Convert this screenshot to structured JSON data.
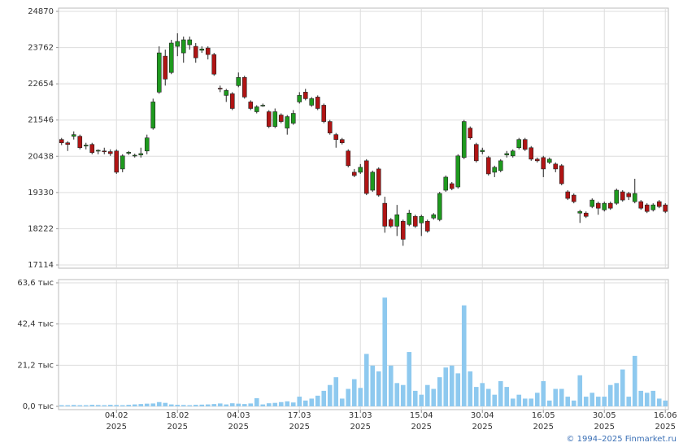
{
  "chart_data": [
    {
      "type": "candlestick",
      "categories": [
        null,
        null,
        null,
        null,
        null,
        null,
        null,
        null,
        null,
        "04.02\n2025",
        null,
        null,
        null,
        null,
        null,
        null,
        null,
        null,
        null,
        "18.02\n2025",
        null,
        null,
        null,
        null,
        null,
        null,
        null,
        null,
        null,
        "04.03\n2025",
        null,
        null,
        null,
        null,
        null,
        null,
        null,
        null,
        null,
        "17.03\n2025",
        null,
        null,
        null,
        null,
        null,
        null,
        null,
        null,
        null,
        "31.03\n2025",
        null,
        null,
        null,
        null,
        null,
        null,
        null,
        null,
        null,
        "15.04\n2025",
        null,
        null,
        null,
        null,
        null,
        null,
        null,
        null,
        null,
        "30.04\n2025",
        null,
        null,
        null,
        null,
        null,
        null,
        null,
        null,
        null,
        "16.05\n2025",
        null,
        null,
        null,
        null,
        null,
        null,
        null,
        null,
        null,
        "30.05\n2025",
        null,
        null,
        null,
        null,
        null,
        null,
        null,
        null,
        null,
        "16.06\n2025"
      ],
      "open": [
        20950,
        20850,
        21050,
        21050,
        20750,
        20800,
        20600,
        20600,
        20580,
        20600,
        20050,
        20530,
        20450,
        20480,
        20600,
        21300,
        22400,
        23500,
        23000,
        23800,
        23600,
        23850,
        23800,
        23680,
        23750,
        23550,
        22520,
        22300,
        22350,
        22600,
        22850,
        22100,
        21800,
        21980,
        21800,
        21350,
        21700,
        21300,
        21450,
        22100,
        22400,
        22000,
        22250,
        22000,
        21500,
        21100,
        20950,
        20600,
        19950,
        19950,
        20300,
        19400,
        20050,
        19000,
        18500,
        18300,
        18450,
        18350,
        18600,
        18400,
        18450,
        18550,
        18500,
        19400,
        19600,
        19500,
        20400,
        21300,
        20800,
        20580,
        20400,
        19950,
        20000,
        20480,
        20450,
        20700,
        20950,
        20700,
        20350,
        20400,
        20250,
        20200,
        20150,
        19350,
        19250,
        18700,
        18700,
        18900,
        19000,
        18800,
        19000,
        19000,
        19350,
        19300,
        19050,
        19050,
        18950,
        18800,
        19050,
        18950
      ],
      "high": [
        21000,
        20900,
        21200,
        21100,
        20850,
        20850,
        20650,
        20700,
        20650,
        20650,
        20500,
        20600,
        20520,
        20700,
        21100,
        22200,
        23800,
        23700,
        24000,
        24200,
        24100,
        24100,
        23900,
        23800,
        23800,
        23600,
        22600,
        22500,
        22400,
        23000,
        22900,
        22150,
        22000,
        22050,
        21850,
        21900,
        21750,
        21700,
        21850,
        22400,
        22500,
        22250,
        22300,
        22050,
        21550,
        21150,
        21000,
        20650,
        20050,
        20200,
        20350,
        20000,
        20100,
        19200,
        18550,
        18950,
        18500,
        18800,
        18650,
        18650,
        18500,
        18700,
        19350,
        19850,
        19650,
        20500,
        21550,
        21350,
        20850,
        20700,
        20450,
        20150,
        20350,
        20600,
        20650,
        21000,
        21000,
        20750,
        20400,
        20450,
        20400,
        20250,
        20200,
        19400,
        19300,
        18800,
        18750,
        19150,
        19050,
        19050,
        19050,
        19450,
        19400,
        19350,
        19750,
        19100,
        19000,
        19000,
        19100,
        19000
      ],
      "low": [
        20780,
        20600,
        20950,
        20650,
        20650,
        20500,
        20500,
        20500,
        20450,
        19900,
        19950,
        20480,
        20400,
        20400,
        20500,
        21250,
        22350,
        22600,
        22950,
        23500,
        23300,
        23700,
        23300,
        23600,
        23400,
        22900,
        22400,
        22100,
        21850,
        22550,
        22200,
        21850,
        21750,
        21950,
        21300,
        21300,
        21450,
        21100,
        21400,
        22050,
        22150,
        21950,
        21850,
        21450,
        21100,
        20700,
        20800,
        20100,
        19800,
        19900,
        19250,
        19350,
        19200,
        18100,
        18250,
        18000,
        17700,
        18300,
        18250,
        18000,
        18100,
        18500,
        18450,
        19350,
        19400,
        19450,
        20350,
        20950,
        20250,
        20500,
        19850,
        19800,
        19950,
        20400,
        20400,
        20650,
        20600,
        20300,
        20250,
        19800,
        20200,
        19950,
        19550,
        19100,
        19000,
        18400,
        18550,
        18850,
        18650,
        18750,
        18800,
        18950,
        19050,
        19100,
        19000,
        18800,
        18700,
        18750,
        18850,
        18700
      ],
      "close": [
        20850,
        20800,
        21100,
        20700,
        20780,
        20550,
        20620,
        20580,
        20520,
        19950,
        20450,
        20560,
        20470,
        20520,
        21000,
        22100,
        23600,
        22800,
        23900,
        23950,
        24000,
        24000,
        23450,
        23720,
        23550,
        22950,
        22500,
        22450,
        21900,
        22850,
        22250,
        21900,
        21950,
        22000,
        21350,
        21800,
        21500,
        21650,
        21750,
        22300,
        22200,
        22200,
        21900,
        21500,
        21150,
        20950,
        20850,
        20150,
        19850,
        20100,
        19300,
        19950,
        19250,
        18300,
        18300,
        18650,
        17900,
        18700,
        18300,
        18600,
        18150,
        18650,
        19300,
        19800,
        19450,
        20450,
        21500,
        21000,
        20300,
        20620,
        19900,
        20100,
        20300,
        20520,
        20600,
        20950,
        20650,
        20350,
        20300,
        20050,
        20350,
        20050,
        19600,
        19150,
        19050,
        18750,
        18600,
        19100,
        18850,
        19000,
        18850,
        19400,
        19100,
        19200,
        19300,
        18850,
        18750,
        18950,
        18900,
        18750
      ],
      "up_color": "#1e9a1e",
      "down_color": "#b01414",
      "ylim": [
        17114,
        24870
      ],
      "yticks": [
        17114,
        18222,
        19330,
        20438,
        21546,
        22654,
        23762,
        24870
      ],
      "grid": true
    },
    {
      "type": "bar",
      "values": [
        0.6,
        0.6,
        0.7,
        0.6,
        0.6,
        0.8,
        0.7,
        0.6,
        0.8,
        0.7,
        0.6,
        0.8,
        1.0,
        1.2,
        1.4,
        1.5,
        2.2,
        1.8,
        1.0,
        0.8,
        0.7,
        0.6,
        0.8,
        0.9,
        1.0,
        1.2,
        1.5,
        1.0,
        1.6,
        1.4,
        1.2,
        1.5,
        4.2,
        1.0,
        1.6,
        1.8,
        2.2,
        2.6,
        2.0,
        5.0,
        3.0,
        4.0,
        5.5,
        8.0,
        11,
        15,
        4.0,
        9.0,
        14,
        9.5,
        27,
        21,
        18,
        56,
        21,
        12,
        11,
        28,
        8,
        6,
        11,
        9,
        15,
        20,
        21,
        17,
        52,
        18,
        10,
        12,
        9,
        6,
        13,
        10,
        4,
        6,
        4,
        4,
        7,
        13,
        3,
        9,
        9,
        5,
        3,
        16,
        5,
        7,
        5,
        5,
        11,
        12,
        19,
        5,
        26,
        8,
        7,
        8,
        4,
        3
      ],
      "color": "#8ec9ef",
      "ylim": [
        0,
        63.6
      ],
      "yticks": [
        {
          "value": 0,
          "label": "0,0 тыс"
        },
        {
          "value": 21.2,
          "label": "21,2 тыс"
        },
        {
          "value": 42.4,
          "label": "42,4 тыс"
        },
        {
          "value": 63.6,
          "label": "63,6 тыс"
        }
      ],
      "grid": true
    }
  ],
  "footer": "© 1994–2025 Finmarket.ru"
}
